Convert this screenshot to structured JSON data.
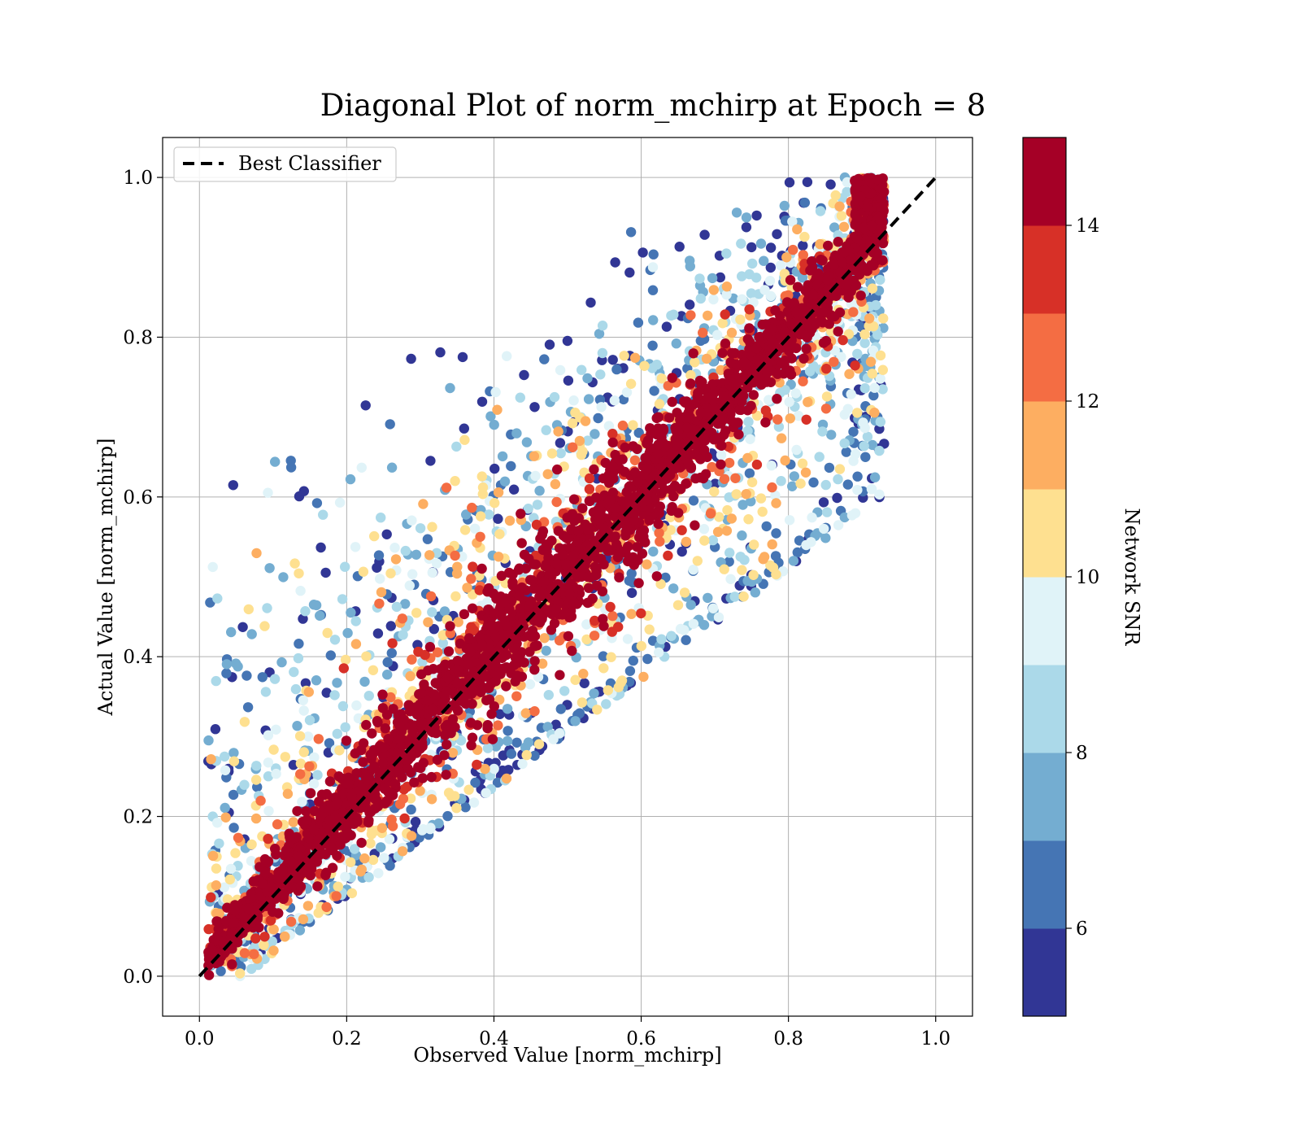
{
  "chart_data": {
    "type": "scatter",
    "title": "Diagonal Plot of norm_mchirp at Epoch = 8",
    "xlabel": "Observed Value [norm_mchirp]",
    "ylabel": "Actual Value [norm_mchirp]",
    "xlim": [
      -0.05,
      1.05
    ],
    "ylim": [
      -0.05,
      1.05
    ],
    "xticks": [
      0.0,
      0.2,
      0.4,
      0.6,
      0.8,
      1.0
    ],
    "yticks": [
      0.0,
      0.2,
      0.4,
      0.6,
      0.8,
      1.0
    ],
    "xtick_labels": [
      "0.0",
      "0.2",
      "0.4",
      "0.6",
      "0.8",
      "1.0"
    ],
    "ytick_labels": [
      "0.0",
      "0.2",
      "0.4",
      "0.6",
      "0.8",
      "1.0"
    ],
    "grid": true,
    "legend": {
      "position": "top-left",
      "entries": [
        {
          "label": "Best Classifier",
          "style": "dashed",
          "color": "#000000"
        }
      ]
    },
    "reference_line": {
      "name": "Best Classifier",
      "x": [
        0.0,
        1.0
      ],
      "y": [
        0.0,
        1.0
      ]
    },
    "colorbar": {
      "label": "Network SNR",
      "range": [
        5,
        15
      ],
      "ticks": [
        6,
        8,
        10,
        12,
        14
      ],
      "tick_labels": [
        "6",
        "8",
        "10",
        "12",
        "14"
      ],
      "colors": [
        "#313695",
        "#4575b4",
        "#74add1",
        "#abd9e9",
        "#e0f3f8",
        "#fee090",
        "#fdae61",
        "#f46d43",
        "#d73027",
        "#a50026"
      ]
    },
    "points_description_range": {
      "x": [
        0.0,
        0.93
      ],
      "y": [
        0.0,
        1.0
      ]
    }
  }
}
